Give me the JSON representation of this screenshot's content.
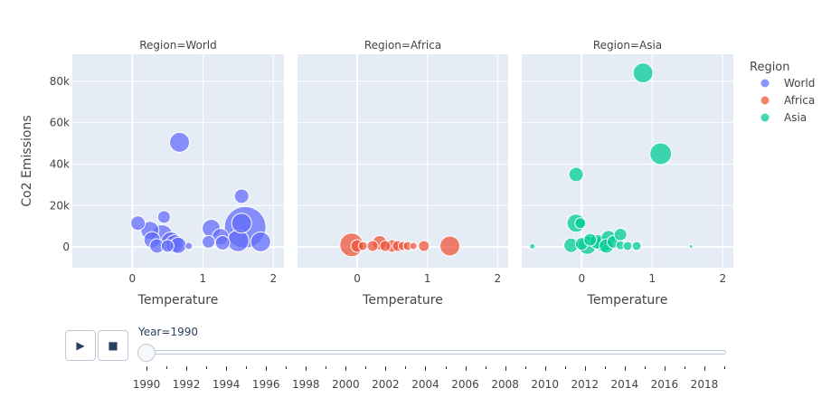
{
  "chart_data": {
    "type": "scatter",
    "subtype": "bubble-faceted",
    "facet_titles": [
      "Region=World",
      "Region=Africa",
      "Region=Asia"
    ],
    "xlabel": "Temperature",
    "ylabel": "Co2 Emissions",
    "xlim": [
      -0.85,
      2.15
    ],
    "ylim": [
      -10000,
      93000
    ],
    "x_ticks": [
      0,
      1,
      2
    ],
    "y_ticks": [
      0,
      20000,
      40000,
      60000,
      80000
    ],
    "y_tick_labels": [
      "0",
      "20k",
      "40k",
      "60k",
      "80k"
    ],
    "grid": true,
    "legend": {
      "title": "Region",
      "placement": "top-right",
      "entries": [
        {
          "name": "World",
          "color": "#636efa"
        },
        {
          "name": "Africa",
          "color": "#ef553b"
        },
        {
          "name": "Asia",
          "color": "#00cc96"
        }
      ]
    },
    "series": [
      {
        "name": "World",
        "color": "#636efa",
        "points": [
          {
            "x": 0.67,
            "y": 50500,
            "size": 22
          },
          {
            "x": 1.55,
            "y": 24500,
            "size": 16
          },
          {
            "x": 0.08,
            "y": 11500,
            "size": 16
          },
          {
            "x": 0.45,
            "y": 14500,
            "size": 14
          },
          {
            "x": 0.25,
            "y": 8000,
            "size": 20
          },
          {
            "x": 0.28,
            "y": 3500,
            "size": 18
          },
          {
            "x": 0.42,
            "y": 5500,
            "size": 24
          },
          {
            "x": 0.55,
            "y": 2500,
            "size": 22
          },
          {
            "x": 0.6,
            "y": 1500,
            "size": 20
          },
          {
            "x": 0.35,
            "y": 500,
            "size": 16
          },
          {
            "x": 0.5,
            "y": 500,
            "size": 14
          },
          {
            "x": 0.65,
            "y": 800,
            "size": 18
          },
          {
            "x": 0.8,
            "y": 500,
            "size": 8
          },
          {
            "x": 1.12,
            "y": 9000,
            "size": 20
          },
          {
            "x": 1.08,
            "y": 2500,
            "size": 14
          },
          {
            "x": 1.28,
            "y": 2000,
            "size": 16
          },
          {
            "x": 1.25,
            "y": 5000,
            "size": 18
          },
          {
            "x": 1.5,
            "y": 3000,
            "size": 24
          },
          {
            "x": 1.55,
            "y": 11500,
            "size": 22
          },
          {
            "x": 1.6,
            "y": 9500,
            "size": 46
          },
          {
            "x": 1.82,
            "y": 2500,
            "size": 22
          }
        ]
      },
      {
        "name": "Africa",
        "color": "#ef553b",
        "points": [
          {
            "x": -0.08,
            "y": 1000,
            "size": 26
          },
          {
            "x": 0.0,
            "y": 500,
            "size": 14
          },
          {
            "x": 0.08,
            "y": 500,
            "size": 10
          },
          {
            "x": 0.22,
            "y": 500,
            "size": 12
          },
          {
            "x": 0.32,
            "y": 2000,
            "size": 16
          },
          {
            "x": 0.4,
            "y": 500,
            "size": 12
          },
          {
            "x": 0.5,
            "y": 500,
            "size": 14
          },
          {
            "x": 0.58,
            "y": 500,
            "size": 12
          },
          {
            "x": 0.65,
            "y": 500,
            "size": 10
          },
          {
            "x": 0.72,
            "y": 500,
            "size": 10
          },
          {
            "x": 0.8,
            "y": 500,
            "size": 8
          },
          {
            "x": 0.95,
            "y": 500,
            "size": 12
          },
          {
            "x": 1.32,
            "y": 500,
            "size": 22
          }
        ]
      },
      {
        "name": "Asia",
        "color": "#00cc96",
        "points": [
          {
            "x": 0.87,
            "y": 84000,
            "size": 22
          },
          {
            "x": 1.12,
            "y": 45000,
            "size": 24
          },
          {
            "x": -0.08,
            "y": 35000,
            "size": 16
          },
          {
            "x": -0.08,
            "y": 11500,
            "size": 20
          },
          {
            "x": -0.02,
            "y": 11500,
            "size": 12
          },
          {
            "x": -0.7,
            "y": 300,
            "size": 6
          },
          {
            "x": -0.15,
            "y": 800,
            "size": 16
          },
          {
            "x": 0.0,
            "y": 1500,
            "size": 14
          },
          {
            "x": 0.08,
            "y": 800,
            "size": 20
          },
          {
            "x": 0.12,
            "y": 3500,
            "size": 14
          },
          {
            "x": 0.22,
            "y": 2500,
            "size": 16
          },
          {
            "x": 0.3,
            "y": 1500,
            "size": 18
          },
          {
            "x": 0.38,
            "y": 4500,
            "size": 16
          },
          {
            "x": 0.35,
            "y": 500,
            "size": 16
          },
          {
            "x": 0.45,
            "y": 2500,
            "size": 14
          },
          {
            "x": 0.55,
            "y": 6000,
            "size": 14
          },
          {
            "x": 0.55,
            "y": 800,
            "size": 10
          },
          {
            "x": 0.65,
            "y": 500,
            "size": 10
          },
          {
            "x": 0.78,
            "y": 500,
            "size": 10
          },
          {
            "x": 1.55,
            "y": 300,
            "size": 4
          }
        ]
      }
    ]
  },
  "controls": {
    "play_icon": "▶",
    "stop_icon": "■",
    "slider_label": "Year=1990",
    "slider_value": 1990,
    "year_min": 1990,
    "year_max": 2019,
    "year_labels": [
      "1990",
      "1992",
      "1994",
      "1996",
      "1998",
      "2000",
      "2002",
      "2004",
      "2006",
      "2008",
      "2010",
      "2012",
      "2014",
      "2016",
      "2018"
    ]
  }
}
